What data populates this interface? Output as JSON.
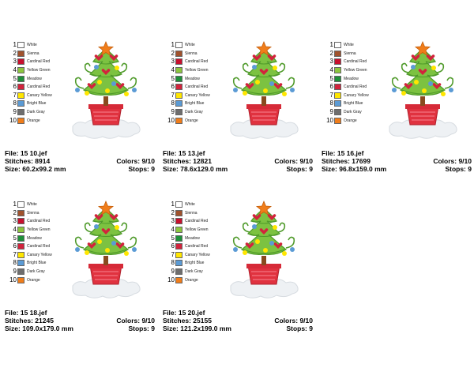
{
  "palette": [
    {
      "num": "1",
      "name": "White",
      "color": "#ffffff"
    },
    {
      "num": "2",
      "name": "Sienna",
      "color": "#a0522d"
    },
    {
      "num": "3",
      "name": "Cardinal Red",
      "color": "#c8102e"
    },
    {
      "num": "4",
      "name": "Yellow Green",
      "color": "#8cc63f"
    },
    {
      "num": "5",
      "name": "Meadow",
      "color": "#1e8f3a"
    },
    {
      "num": "6",
      "name": "Cardinal Red",
      "color": "#d2233c"
    },
    {
      "num": "7",
      "name": "Canary Yellow",
      "color": "#ffe600"
    },
    {
      "num": "8",
      "name": "Bright Blue",
      "color": "#5b9bd5"
    },
    {
      "num": "9",
      "name": "Dark Gray",
      "color": "#6e6e6e"
    },
    {
      "num": "10",
      "name": "Orange",
      "color": "#f07d1a"
    }
  ],
  "labels": {
    "file": "File:",
    "stitches": "Stitches:",
    "size": "Size:",
    "colors": "Colors:",
    "stops": "Stops:"
  },
  "designs": [
    {
      "file": "15 10.jef",
      "stitches": "8914",
      "size": "60.2x99.2 mm",
      "colors": "9/10",
      "stops": "9"
    },
    {
      "file": "15 13.jef",
      "stitches": "12821",
      "size": "78.6x129.0 mm",
      "colors": "9/10",
      "stops": "9"
    },
    {
      "file": "15 16.jef",
      "stitches": "17699",
      "size": "96.8x159.0 mm",
      "colors": "9/10",
      "stops": "9"
    },
    {
      "file": "15 18.jef",
      "stitches": "21245",
      "size": "109.0x179.0 mm",
      "colors": "9/10",
      "stops": "9"
    },
    {
      "file": "15 20.jef",
      "stitches": "25155",
      "size": "121.2x199.0 mm",
      "colors": "9/10",
      "stops": "9"
    }
  ]
}
